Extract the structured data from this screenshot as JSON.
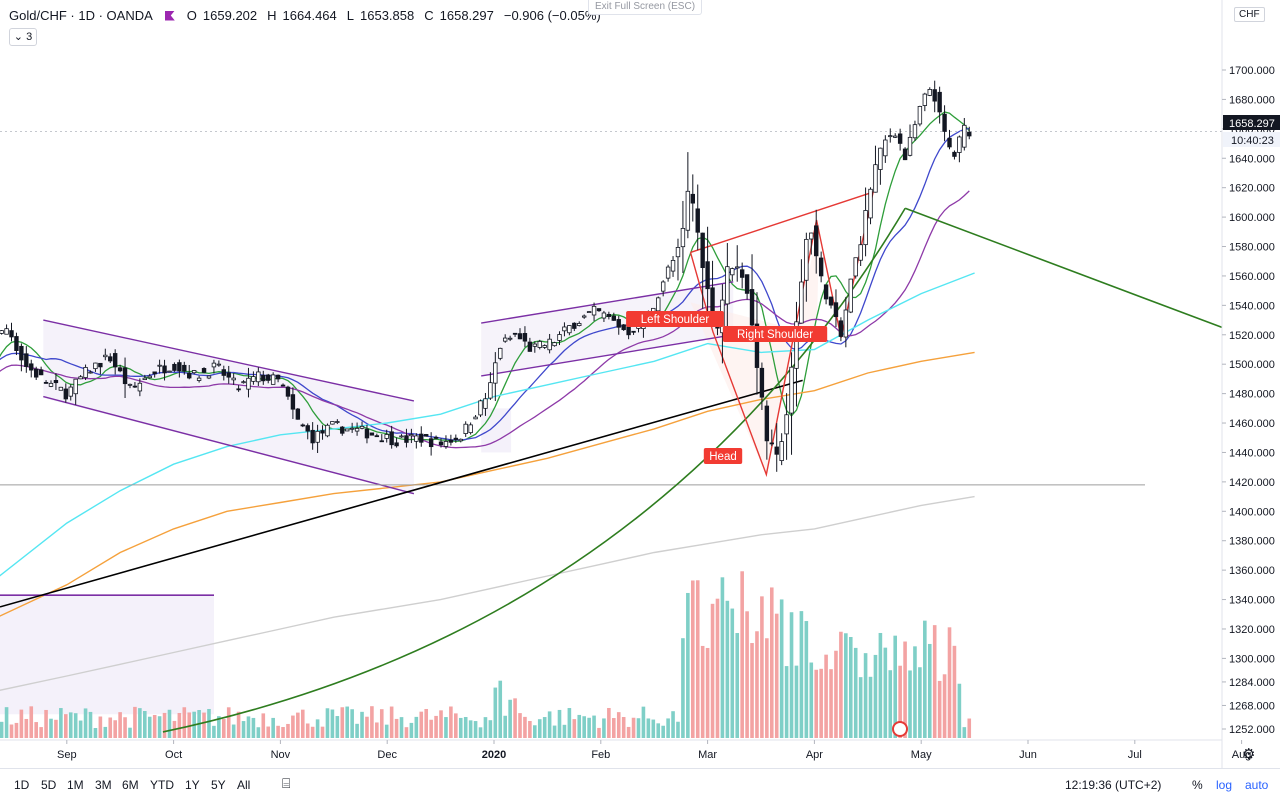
{
  "header": {
    "symbol": "Gold/CHF",
    "interval": "1D",
    "broker": "OANDA",
    "open_label": "O",
    "open": "1659.202",
    "high_label": "H",
    "high": "1664.464",
    "low_label": "L",
    "low": "1653.858",
    "close_label": "C",
    "close": "1658.297",
    "change": "−0.906 (−0.05%)"
  },
  "indicator_toggle": "3",
  "exit_fullscreen": "Exit Full Screen (ESC)",
  "currency": "CHF",
  "last_price": "1658.297",
  "countdown": "10:40:23",
  "bottom": {
    "timeframes": [
      "1D",
      "5D",
      "1M",
      "3M",
      "6M",
      "YTD",
      "1Y",
      "5Y",
      "All"
    ],
    "clock": "12:19:36 (UTC+2)",
    "percent": "%",
    "log": "log",
    "auto": "auto"
  },
  "chart_data": {
    "type": "candlestick",
    "ylim": [
      1240,
      1720
    ],
    "y_ticks": [
      "1700.000",
      "1680.000",
      "1660.000",
      "1640.000",
      "1620.000",
      "1600.000",
      "1580.000",
      "1560.000",
      "1540.000",
      "1520.000",
      "1500.000",
      "1480.000",
      "1460.000",
      "1440.000",
      "1420.000",
      "1400.000",
      "1380.000",
      "1360.000",
      "1340.000",
      "1320.000",
      "1300.000",
      "1284.000",
      "1268.000",
      "1252.000"
    ],
    "y_tick_values": [
      1700,
      1680,
      1660,
      1640,
      1620,
      1600,
      1580,
      1560,
      1540,
      1520,
      1500,
      1480,
      1460,
      1440,
      1420,
      1400,
      1380,
      1360,
      1340,
      1320,
      1300,
      1284,
      1268,
      1252
    ],
    "x_ticks": [
      {
        "label": "Sep",
        "month": 1
      },
      {
        "label": "Oct",
        "month": 2
      },
      {
        "label": "Nov",
        "month": 3
      },
      {
        "label": "Dec",
        "month": 4
      },
      {
        "label": "2020",
        "month": 5
      },
      {
        "label": "Feb",
        "month": 6
      },
      {
        "label": "Mar",
        "month": 7
      },
      {
        "label": "Apr",
        "month": 8
      },
      {
        "label": "May",
        "month": 9
      },
      {
        "label": "Jun",
        "month": 10
      },
      {
        "label": "Jul",
        "month": 11
      },
      {
        "label": "Aug",
        "month": 12
      }
    ],
    "close_path": [
      [
        0,
        1478
      ],
      [
        0.15,
        1500
      ],
      [
        0.3,
        1515
      ],
      [
        0.45,
        1525
      ],
      [
        0.6,
        1500
      ],
      [
        0.8,
        1488
      ],
      [
        1,
        1480
      ],
      [
        1.2,
        1496
      ],
      [
        1.4,
        1505
      ],
      [
        1.6,
        1482
      ],
      [
        1.8,
        1495
      ],
      [
        2,
        1500
      ],
      [
        2.2,
        1492
      ],
      [
        2.4,
        1498
      ],
      [
        2.6,
        1484
      ],
      [
        2.8,
        1492
      ],
      [
        3,
        1488
      ],
      [
        3.15,
        1462
      ],
      [
        3.3,
        1450
      ],
      [
        3.5,
        1458
      ],
      [
        3.7,
        1455
      ],
      [
        3.9,
        1452
      ],
      [
        4.1,
        1448
      ],
      [
        4.3,
        1450
      ],
      [
        4.5,
        1446
      ],
      [
        4.7,
        1452
      ],
      [
        4.85,
        1470
      ],
      [
        4.95,
        1480
      ],
      [
        5.05,
        1512
      ],
      [
        5.2,
        1520
      ],
      [
        5.35,
        1510
      ],
      [
        5.55,
        1515
      ],
      [
        5.75,
        1528
      ],
      [
        5.95,
        1536
      ],
      [
        6.1,
        1530
      ],
      [
        6.25,
        1522
      ],
      [
        6.45,
        1532
      ],
      [
        6.6,
        1560
      ],
      [
        6.75,
        1580
      ],
      [
        6.83,
        1624
      ],
      [
        6.9,
        1592
      ],
      [
        7.0,
        1550
      ],
      [
        7.08,
        1520
      ],
      [
        7.2,
        1570
      ],
      [
        7.35,
        1560
      ],
      [
        7.45,
        1508
      ],
      [
        7.55,
        1450
      ],
      [
        7.65,
        1435
      ],
      [
        7.75,
        1470
      ],
      [
        7.85,
        1540
      ],
      [
        7.95,
        1600
      ],
      [
        8.05,
        1560
      ],
      [
        8.15,
        1540
      ],
      [
        8.25,
        1518
      ],
      [
        8.35,
        1560
      ],
      [
        8.45,
        1590
      ],
      [
        8.55,
        1630
      ],
      [
        8.65,
        1650
      ],
      [
        8.75,
        1660
      ],
      [
        8.85,
        1640
      ],
      [
        9.0,
        1676
      ],
      [
        9.1,
        1690
      ],
      [
        9.2,
        1660
      ],
      [
        9.3,
        1640
      ],
      [
        9.4,
        1660
      ],
      [
        9.5,
        1658
      ]
    ],
    "ohlc_last": {
      "open": 1659.202,
      "high": 1664.464,
      "low": 1653.858,
      "close": 1658.297,
      "change": -0.906,
      "change_pct": -0.05
    }
  },
  "annotations": {
    "left_shoulder": "Left Shoulder",
    "head": "Head",
    "right_shoulder": "Right Shoulder"
  }
}
